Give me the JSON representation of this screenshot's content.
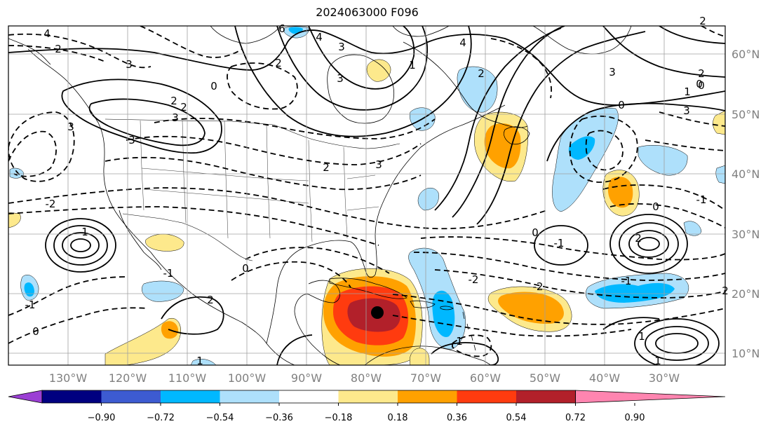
{
  "title": "2024063000 F096",
  "lat_labels": [
    "60°N",
    "50°N",
    "40°N",
    "30°N",
    "20°N",
    "10°N"
  ],
  "lon_labels": [
    "130°W",
    "120°W",
    "110°W",
    "100°W",
    "90°W",
    "80°W",
    "70°W",
    "60°W",
    "50°W",
    "40°W",
    "30°W"
  ],
  "colorbar": {
    "ticks": [
      "−0.90",
      "−0.72",
      "−0.54",
      "−0.36",
      "−0.18",
      "0.18",
      "0.36",
      "0.54",
      "0.72",
      "0.90"
    ],
    "colors": [
      "#9b3fd4",
      "#000080",
      "#3d5bd1",
      "#00b8ff",
      "#aee0fb",
      "#ffffff",
      "#fde98c",
      "#ffa100",
      "#ff3b0f",
      "#b2202a",
      "#ff85b0"
    ]
  },
  "contour_labels": [
    "4",
    "3",
    "2",
    "2",
    "0",
    "3",
    "4",
    "6",
    "2",
    "3",
    "3",
    "4",
    "2",
    "1",
    "0",
    "3",
    "0",
    "2",
    "2",
    "3",
    "1",
    "0",
    "2",
    "-2",
    "-1",
    "2",
    "0",
    "-1",
    "-2",
    "-2",
    "-1",
    "2",
    "1",
    "3",
    "2",
    "3",
    "-1",
    "3",
    "0",
    "2",
    "1",
    "0",
    "0",
    "-1",
    "1",
    "1",
    "1"
  ],
  "marker": "storm-center",
  "colors": {
    "land_outline": "#000000",
    "grid": "#a0a0a0",
    "frame": "#000000"
  }
}
